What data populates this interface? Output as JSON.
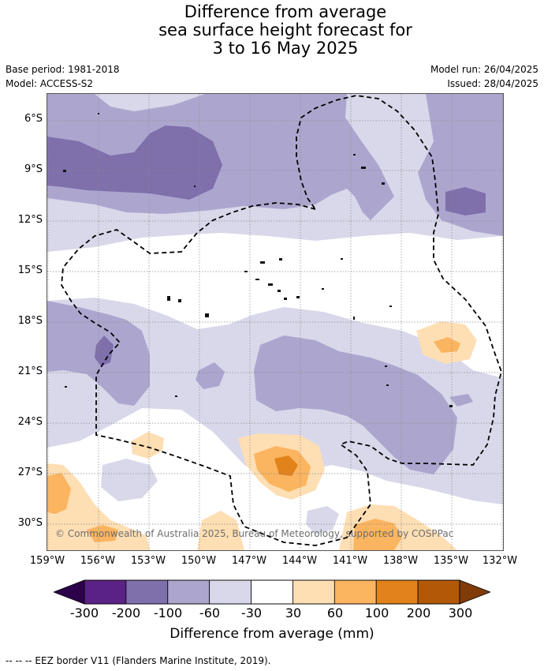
{
  "title": {
    "line1": "Difference from average",
    "line2": "sea surface height forecast for",
    "line3": "3 to 16 May 2025"
  },
  "meta": {
    "base_period": "Base period: 1981-2018",
    "model": "Model: ACCESS-S2",
    "model_run": "Model run: 26/04/2025",
    "issued": "Issued: 28/04/2025"
  },
  "map": {
    "region": "South Pacific",
    "lat_labels": [
      "6°S",
      "9°S",
      "12°S",
      "15°S",
      "18°S",
      "21°S",
      "24°S",
      "27°S",
      "30°S"
    ],
    "lon_labels": [
      "159°W",
      "156°W",
      "153°W",
      "150°W",
      "147°W",
      "144°W",
      "141°W",
      "138°W",
      "135°W",
      "132°W"
    ],
    "grid": true,
    "eez_border_style": "dashed black",
    "credit": "© Commonwealth of Australia 2025, Bureau of Meteorology, supported by COSPPac"
  },
  "colorbar": {
    "labels": [
      "-300",
      "-200",
      "-100",
      "-60",
      "-30",
      "30",
      "60",
      "100",
      "200",
      "300"
    ],
    "colors": [
      "#5b2286",
      "#7f6fab",
      "#aca6cf",
      "#d8d8ea",
      "#ffffff",
      "#fedeb3",
      "#fbb45f",
      "#e2821a",
      "#b35806"
    ],
    "low_extend_color": "#2d004b",
    "high_extend_color": "#7f3b08",
    "title": "Difference from average (mm)"
  },
  "legend_note": "--  --  -- EEZ border V11 (Flanders Marine Institute, 2019)."
}
